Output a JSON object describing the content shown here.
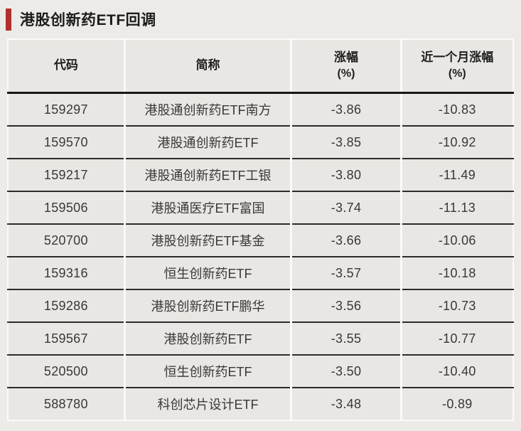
{
  "title": "港股创新药ETF回调",
  "colors": {
    "accent_bar": "#b22f2c",
    "page_bg": "#edebe7",
    "cell_bg": "#e9e7e3",
    "column_gap": "#fbfaf8",
    "row_line": "#2b2b2b",
    "text": "#383838"
  },
  "table": {
    "headers": {
      "code": "代码",
      "name": "简称",
      "change_line1": "涨幅",
      "change_line2": "(%)",
      "month_change_line1": "近一个月涨幅",
      "month_change_line2": "(%)"
    },
    "rows": [
      {
        "code": "159297",
        "name": "港股通创新药ETF南方",
        "change": "-3.86",
        "month_change": "-10.83"
      },
      {
        "code": "159570",
        "name": "港股通创新药ETF",
        "change": "-3.85",
        "month_change": "-10.92"
      },
      {
        "code": "159217",
        "name": "港股通创新药ETF工银",
        "change": "-3.80",
        "month_change": "-11.49"
      },
      {
        "code": "159506",
        "name": "港股通医疗ETF富国",
        "change": "-3.74",
        "month_change": "-11.13"
      },
      {
        "code": "520700",
        "name": "港股创新药ETF基金",
        "change": "-3.66",
        "month_change": "-10.06"
      },
      {
        "code": "159316",
        "name": "恒生创新药ETF",
        "change": "-3.57",
        "month_change": "-10.18"
      },
      {
        "code": "159286",
        "name": "港股创新药ETF鹏华",
        "change": "-3.56",
        "month_change": "-10.73"
      },
      {
        "code": "159567",
        "name": "港股创新药ETF",
        "change": "-3.55",
        "month_change": "-10.77"
      },
      {
        "code": "520500",
        "name": "恒生创新药ETF",
        "change": "-3.50",
        "month_change": "-10.40"
      },
      {
        "code": "588780",
        "name": "科创芯片设计ETF",
        "change": "-3.48",
        "month_change": "-0.89"
      }
    ]
  }
}
